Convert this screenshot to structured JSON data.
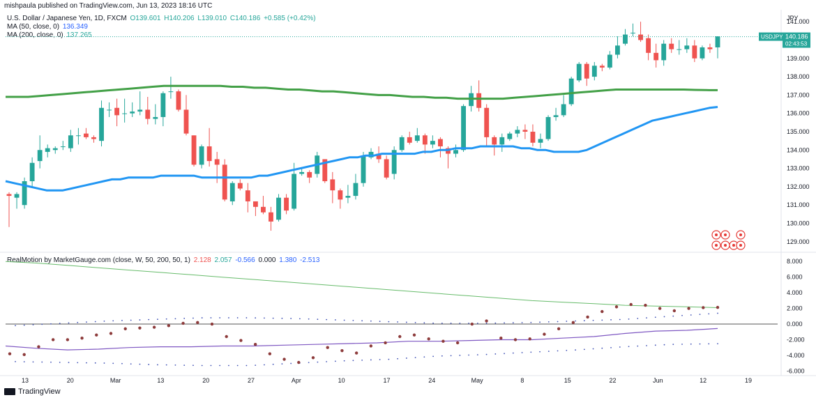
{
  "header": {
    "attribution": "mishpaula published on TradingView.com, Jun 13, 2023 18:16 UTC",
    "symbol_line": "U.S. Dollar / Japanese Yen, 1D, FXCM",
    "o": "O139.601",
    "h": "H140.206",
    "l": "L139.010",
    "c": "C140.186",
    "chg": "+0.585 (+0.42%)",
    "ma50_label": "MA (50, close, 0)",
    "ma50_value": "136.349",
    "ma200_label": "MA (200, close, 0)",
    "ma200_value": "137.265",
    "rm_label": "RealMotion by MarketGauge.com (close, W, 50, 200, 50, 1)",
    "rm_v1": "2.128",
    "rm_v2": "2.057",
    "rm_v3": "-0.566",
    "rm_v4": "0.000",
    "rm_v5": "1.380",
    "rm_v6": "-2.513"
  },
  "price_axis": {
    "currency": "JPY",
    "ticks": [
      "141.000",
      "140.000",
      "139.000",
      "138.000",
      "137.000",
      "136.000",
      "135.000",
      "134.000",
      "133.000",
      "132.000",
      "131.000",
      "130.000",
      "129.000"
    ],
    "last_symbol": "USDJPY",
    "last_price": "140.186",
    "countdown": "02:43:53"
  },
  "indicator_axis": {
    "ticks": [
      "8.000",
      "6.000",
      "4.000",
      "2.000",
      "0.000",
      "-2.000",
      "-4.000",
      "-6.000"
    ]
  },
  "time_axis": {
    "labels": [
      "13",
      "20",
      "Mar",
      "13",
      "20",
      "27",
      "Apr",
      "10",
      "17",
      "24",
      "May",
      "8",
      "15",
      "22",
      "Jun",
      "12",
      "19"
    ]
  },
  "footer": {
    "brand": "TradingView"
  },
  "chart_data": {
    "type": "candlestick",
    "symbol": "USDJPY",
    "timeframe": "1D",
    "ylim": [
      128.5,
      141.5
    ],
    "indicator_ylim": [
      -6.5,
      9
    ],
    "colors": {
      "up": "#26a69a",
      "down": "#ef5350",
      "ma50": "#2196f3",
      "ma200": "#43a047",
      "rm_slow": "#66bb6a",
      "rm_fast": "#7e57c2",
      "dots": "#8d3b3b",
      "band": "#3f51b5"
    },
    "candles": [
      [
        131.6,
        131.5,
        131.7,
        129.8
      ],
      [
        131.4,
        131.6,
        131.7,
        130.8
      ],
      [
        131.0,
        132.3,
        132.5,
        130.8
      ],
      [
        132.3,
        133.3,
        133.6,
        132.0
      ],
      [
        133.4,
        134.0,
        134.8,
        133.0
      ],
      [
        133.9,
        134.1,
        134.3,
        133.6
      ],
      [
        134.0,
        134.1,
        134.2,
        133.8
      ],
      [
        134.2,
        134.2,
        134.5,
        134.0
      ],
      [
        134.1,
        134.8,
        135.1,
        133.9
      ],
      [
        134.8,
        134.8,
        135.2,
        134.3
      ],
      [
        134.9,
        134.7,
        135.2,
        134.6
      ],
      [
        134.7,
        134.6,
        134.8,
        134.4
      ],
      [
        134.5,
        136.3,
        136.7,
        134.2
      ],
      [
        136.2,
        136.2,
        136.6,
        135.8
      ],
      [
        136.3,
        135.9,
        136.8,
        135.3
      ],
      [
        136.0,
        136.0,
        136.8,
        135.5
      ],
      [
        136.0,
        136.1,
        136.6,
        135.8
      ],
      [
        136.1,
        136.2,
        137.2,
        135.9
      ],
      [
        136.2,
        135.7,
        136.9,
        135.4
      ],
      [
        135.7,
        135.8,
        136.5,
        135.4
      ],
      [
        135.8,
        137.1,
        137.2,
        135.3
      ],
      [
        137.2,
        137.2,
        138.0,
        136.8
      ],
      [
        137.2,
        136.2,
        137.3,
        136.1
      ],
      [
        136.2,
        134.9,
        137.0,
        134.8
      ],
      [
        134.8,
        133.2,
        134.8,
        133.1
      ],
      [
        133.2,
        134.2,
        134.3,
        133.0
      ],
      [
        134.2,
        133.4,
        135.2,
        133.1
      ],
      [
        133.5,
        133.2,
        133.9,
        132.2
      ],
      [
        133.2,
        131.3,
        133.5,
        131.2
      ],
      [
        131.2,
        132.2,
        132.3,
        131.0
      ],
      [
        132.2,
        131.9,
        132.4,
        131.8
      ],
      [
        131.8,
        131.2,
        132.2,
        130.6
      ],
      [
        131.2,
        130.9,
        131.2,
        130.4
      ],
      [
        130.9,
        130.6,
        131.5,
        130.5
      ],
      [
        130.6,
        130.1,
        130.9,
        129.6
      ],
      [
        130.2,
        131.4,
        131.6,
        130.1
      ],
      [
        131.4,
        130.7,
        131.6,
        130.5
      ],
      [
        130.8,
        132.7,
        133.3,
        130.7
      ],
      [
        132.7,
        132.8,
        133.0,
        132.6
      ],
      [
        132.8,
        132.5,
        132.9,
        132.2
      ],
      [
        132.7,
        133.7,
        133.9,
        132.5
      ],
      [
        133.5,
        132.3,
        133.5,
        132.2
      ],
      [
        132.4,
        131.8,
        132.8,
        131.1
      ],
      [
        131.8,
        131.3,
        131.9,
        130.8
      ],
      [
        131.4,
        131.5,
        132.1,
        131.1
      ],
      [
        131.5,
        132.2,
        132.7,
        131.3
      ],
      [
        132.2,
        133.7,
        133.9,
        132.0
      ],
      [
        133.6,
        133.9,
        134.1,
        133.5
      ],
      [
        133.8,
        133.5,
        134.2,
        133.3
      ],
      [
        133.5,
        132.5,
        133.7,
        132.4
      ],
      [
        132.7,
        134.0,
        134.2,
        132.4
      ],
      [
        134.0,
        134.7,
        134.8,
        133.9
      ],
      [
        134.7,
        134.4,
        135.0,
        134.3
      ],
      [
        134.5,
        134.8,
        135.2,
        134.4
      ],
      [
        134.8,
        134.3,
        134.9,
        133.8
      ],
      [
        134.3,
        134.5,
        134.8,
        134.1
      ],
      [
        134.6,
        134.2,
        134.7,
        133.6
      ],
      [
        134.1,
        133.8,
        134.2,
        133.0
      ],
      [
        133.8,
        134.0,
        134.3,
        133.6
      ],
      [
        134.0,
        136.4,
        136.5,
        133.9
      ],
      [
        136.4,
        137.1,
        137.5,
        136.1
      ],
      [
        137.1,
        136.3,
        137.8,
        136.1
      ],
      [
        136.3,
        134.7,
        136.5,
        134.2
      ],
      [
        134.7,
        134.3,
        134.8,
        133.7
      ],
      [
        134.3,
        134.7,
        134.9,
        133.9
      ],
      [
        134.6,
        134.9,
        135.0,
        134.5
      ],
      [
        134.9,
        135.1,
        135.3,
        134.7
      ],
      [
        135.1,
        135.0,
        135.4,
        134.6
      ],
      [
        135.0,
        134.4,
        135.4,
        134.2
      ],
      [
        134.4,
        134.6,
        134.9,
        134.1
      ],
      [
        134.6,
        135.8,
        135.9,
        134.5
      ],
      [
        135.8,
        135.9,
        136.3,
        135.6
      ],
      [
        135.9,
        136.5,
        137.0,
        135.8
      ],
      [
        136.5,
        137.9,
        138.0,
        136.4
      ],
      [
        137.8,
        138.7,
        138.8,
        137.7
      ],
      [
        138.7,
        137.9,
        138.8,
        137.5
      ],
      [
        138.0,
        138.6,
        138.8,
        137.8
      ],
      [
        138.6,
        138.5,
        138.7,
        138.3
      ],
      [
        138.5,
        139.2,
        139.4,
        138.4
      ],
      [
        139.2,
        139.7,
        140.2,
        139.0
      ],
      [
        139.8,
        140.3,
        140.6,
        139.7
      ],
      [
        140.4,
        140.4,
        140.9,
        140.2
      ],
      [
        140.3,
        140.0,
        141.0,
        139.9
      ],
      [
        140.1,
        139.3,
        140.3,
        138.9
      ],
      [
        139.3,
        138.9,
        139.8,
        138.5
      ],
      [
        138.9,
        139.8,
        140.0,
        138.6
      ],
      [
        139.8,
        139.5,
        140.1,
        139.3
      ],
      [
        139.5,
        139.5,
        140.0,
        139.2
      ],
      [
        139.5,
        139.7,
        140.1,
        139.3
      ],
      [
        139.7,
        139.0,
        140.0,
        138.8
      ],
      [
        139.0,
        139.6,
        139.7,
        138.9
      ],
      [
        139.6,
        139.5,
        139.8,
        139.3
      ],
      [
        139.6,
        140.2,
        140.2,
        139.0
      ]
    ],
    "ma50": [
      132.3,
      132.2,
      132.1,
      132.0,
      131.9,
      131.8,
      131.8,
      131.8,
      131.9,
      132.0,
      132.1,
      132.2,
      132.3,
      132.4,
      132.4,
      132.5,
      132.5,
      132.5,
      132.5,
      132.6,
      132.6,
      132.6,
      132.6,
      132.6,
      132.5,
      132.5,
      132.5,
      132.5,
      132.5,
      132.5,
      132.5,
      132.6,
      132.6,
      132.7,
      132.8,
      132.9,
      133.0,
      133.1,
      133.2,
      133.3,
      133.4,
      133.5,
      133.6,
      133.6,
      133.7,
      133.7,
      133.8,
      133.8,
      133.8,
      133.8,
      133.8,
      133.9,
      133.9,
      134.0,
      134.0,
      134.1,
      134.1,
      134.1,
      134.2,
      134.2,
      134.2,
      134.2,
      134.2,
      134.1,
      134.1,
      134.0,
      134.0,
      133.9,
      133.9,
      133.9,
      133.9,
      134.0,
      134.2,
      134.4,
      134.6,
      134.8,
      135.0,
      135.2,
      135.4,
      135.6,
      135.7,
      135.8,
      135.9,
      136.0,
      136.1,
      136.2,
      136.3,
      136.35
    ],
    "ma200": [
      136.9,
      136.9,
      136.9,
      136.95,
      137.0,
      137.05,
      137.1,
      137.15,
      137.2,
      137.25,
      137.3,
      137.35,
      137.4,
      137.45,
      137.5,
      137.5,
      137.5,
      137.5,
      137.5,
      137.5,
      137.45,
      137.45,
      137.4,
      137.4,
      137.35,
      137.3,
      137.3,
      137.25,
      137.2,
      137.2,
      137.15,
      137.1,
      137.05,
      137.0,
      137.0,
      136.95,
      136.9,
      136.9,
      136.85,
      136.85,
      136.8,
      136.8,
      136.8,
      136.8,
      136.8,
      136.85,
      136.9,
      136.95,
      137.0,
      137.05,
      137.1,
      137.15,
      137.2,
      137.25,
      137.3,
      137.3,
      137.3,
      137.3,
      137.3,
      137.3,
      137.3,
      137.28,
      137.27,
      137.265
    ],
    "rm_slow": [
      8.0,
      7.8,
      7.5,
      7.2,
      6.9,
      6.6,
      6.3,
      6.0,
      5.7,
      5.4,
      5.1,
      4.8,
      4.5,
      4.2,
      3.9,
      3.6,
      3.3,
      3.0,
      2.8,
      2.6,
      2.4,
      2.3,
      2.2,
      2.1
    ],
    "rm_fast": [
      -2.8,
      -3.1,
      -3.3,
      -3.2,
      -3.0,
      -2.9,
      -2.9,
      -2.8,
      -2.8,
      -2.7,
      -2.6,
      -2.5,
      -2.4,
      -2.2,
      -2.2,
      -2.1,
      -2.0,
      -2.0,
      -1.8,
      -1.6,
      -1.2,
      -0.9,
      -0.8,
      -0.566
    ],
    "rm_dots": [
      -3.8,
      -3.9,
      -2.9,
      -2.0,
      -2.0,
      -1.8,
      -1.4,
      -1.2,
      -0.6,
      -0.5,
      -0.4,
      -0.2,
      0.1,
      0.2,
      0.0,
      -1.6,
      -2.1,
      -2.6,
      -3.8,
      -4.5,
      -4.9,
      -4.3,
      -3.0,
      -3.4,
      -3.7,
      -2.8,
      -2.4,
      -1.6,
      -1.4,
      -1.9,
      -2.2,
      -2.4,
      0.0,
      0.4,
      -1.8,
      -2.0,
      -1.9,
      -1.3,
      -0.6,
      0.2,
      0.9,
      1.6,
      2.2,
      2.5,
      2.4,
      2.0,
      1.7,
      2.0,
      2.1,
      2.13
    ],
    "rm_band_upper": [
      -0.2,
      0.1,
      0.4,
      0.6,
      0.8,
      0.8,
      0.7,
      0.5,
      0.3,
      0.1,
      0.1,
      0.2,
      0.4,
      0.6,
      1.0,
      1.38
    ],
    "rm_band_lower": [
      -4.8,
      -4.9,
      -5.0,
      -5.2,
      -5.3,
      -5.3,
      -5.0,
      -4.7,
      -4.5,
      -4.1,
      -3.9,
      -3.6,
      -3.3,
      -2.9,
      -2.6,
      -2.513
    ]
  }
}
